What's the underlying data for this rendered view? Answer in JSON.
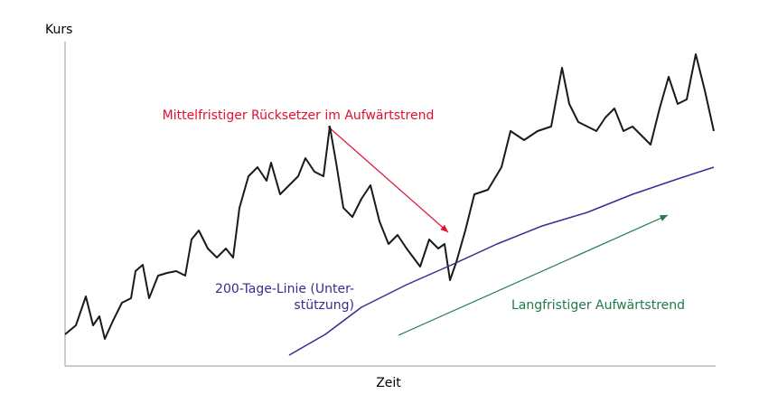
{
  "chart_data": {
    "type": "line",
    "y_label": "Kurs",
    "x_label": "Zeit",
    "annotations": [
      "Mittelfristiger Rücksetzer im Aufwärtstrend",
      "200-Tage-Linie (Unter-",
      "stützung)",
      "Langfristiger Aufwärtstrend"
    ],
    "xlim": [
      0,
      718
    ],
    "ylim": [
      0,
      355
    ],
    "series": [
      {
        "color": "#1a1a1a",
        "x": [
          0,
          12,
          23,
          31,
          38,
          44,
          53,
          63,
          73,
          78,
          86,
          93,
          103,
          113,
          123,
          133,
          140,
          148,
          158,
          168,
          178,
          186,
          193,
          203,
          213,
          223,
          228,
          238,
          248,
          258,
          266,
          276,
          286,
          293,
          300,
          308,
          318,
          328,
          338,
          348,
          358,
          368,
          378,
          393,
          403,
          413,
          420,
          426,
          433,
          443,
          453,
          468,
          483,
          493,
          508,
          523,
          538,
          550,
          558,
          568,
          578,
          588,
          598,
          608,
          618,
          628,
          638,
          648,
          658,
          668,
          678,
          688,
          698,
          708,
          718
        ],
        "values": [
          35,
          45,
          77,
          45,
          55,
          30,
          50,
          70,
          75,
          105,
          112,
          75,
          100,
          103,
          105,
          100,
          140,
          150,
          130,
          120,
          130,
          120,
          175,
          210,
          220,
          205,
          225,
          190,
          200,
          210,
          230,
          215,
          210,
          265,
          225,
          175,
          165,
          185,
          200,
          160,
          135,
          145,
          130,
          110,
          140,
          130,
          135,
          95,
          115,
          150,
          190,
          195,
          220,
          260,
          250,
          260,
          265,
          330,
          290,
          270,
          265,
          260,
          275,
          285,
          260,
          265,
          255,
          245,
          285,
          320,
          290,
          295,
          345,
          305,
          260
        ]
      },
      {
        "color": "#3b2a8f",
        "x": [
          248,
          288,
          328,
          378,
          428,
          478,
          528,
          578,
          628,
          678,
          718
        ],
        "values": [
          12,
          35,
          65,
          90,
          112,
          135,
          155,
          170,
          190,
          207,
          220
        ]
      }
    ]
  }
}
